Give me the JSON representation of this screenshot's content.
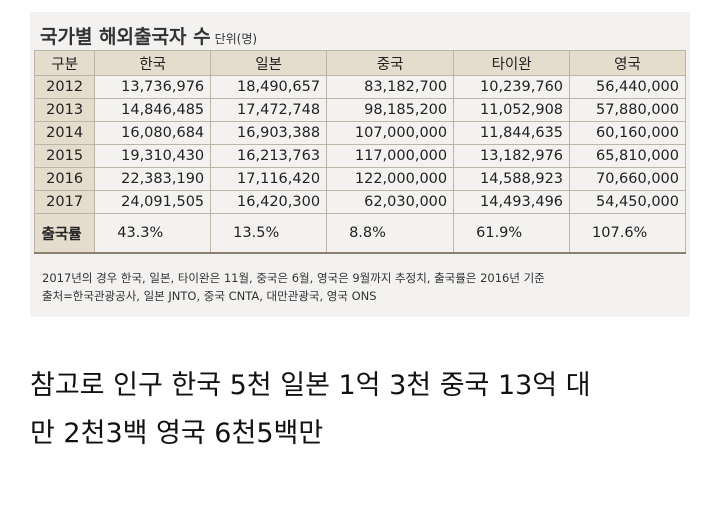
{
  "header": {
    "title": "국가별 해외출국자 수",
    "unit": "단위(명)"
  },
  "table": {
    "columns": [
      "구분",
      "한국",
      "일본",
      "중국",
      "타이완",
      "영국"
    ],
    "rows": [
      [
        "2012",
        "13,736,976",
        "18,490,657",
        "83,182,700",
        "10,239,760",
        "56,440,000"
      ],
      [
        "2013",
        "14,846,485",
        "17,472,748",
        "98,185,200",
        "11,052,908",
        "57,880,000"
      ],
      [
        "2014",
        "16,080,684",
        "16,903,388",
        "107,000,000",
        "11,844,635",
        "60,160,000"
      ],
      [
        "2015",
        "19,310,430",
        "16,213,763",
        "117,000,000",
        "13,182,976",
        "65,810,000"
      ],
      [
        "2016",
        "22,383,190",
        "17,116,420",
        "122,000,000",
        "14,588,923",
        "70,660,000"
      ],
      [
        "2017",
        "24,091,505",
        "16,420,300",
        "62,030,000",
        "14,493,496",
        "54,450,000"
      ],
      [
        "출국률",
        "43.3%",
        "13.5%",
        "8.8%",
        "61.9%",
        "107.6%"
      ]
    ]
  },
  "notes": [
    "2017년의 경우 한국, 일본, 타이완은 11월, 중국은 6월, 영국은 9월까지 추정치, 출국률은 2016년 기준",
    "출처=한국관광공사, 일본 JNTO, 중국 CNTA, 대만관광국, 영국 ONS"
  ],
  "caption": [
    "참고로 인구 한국 5천 일본 1억 3천 중국 13억 대",
    "만 2천3백 영국 6천5백만"
  ]
}
